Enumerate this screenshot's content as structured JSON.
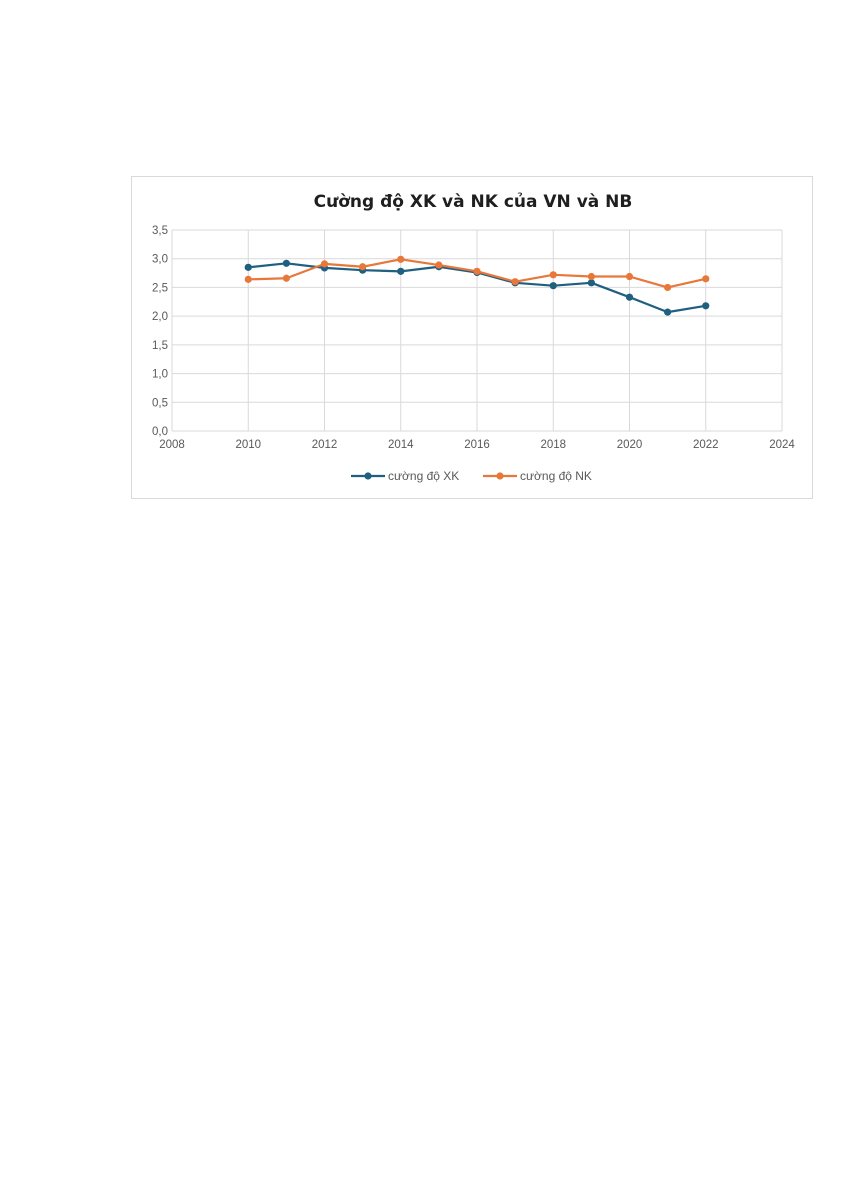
{
  "chart_data": {
    "type": "scatter",
    "title": "Cường độ XK và NK của VN và NB",
    "xlabel": "",
    "ylabel": "",
    "xlim": [
      2008,
      2024
    ],
    "ylim": [
      0,
      3.5
    ],
    "xticks": [
      2008,
      2010,
      2012,
      2014,
      2016,
      2018,
      2020,
      2022,
      2024
    ],
    "yticks": [
      0,
      0.5,
      1.0,
      1.5,
      2.0,
      2.5,
      3.0,
      3.5
    ],
    "xtick_labels": [
      "2008",
      "2010",
      "2012",
      "2014",
      "2016",
      "2018",
      "2020",
      "2022",
      "2024"
    ],
    "ytick_labels": [
      "0,0",
      "0,5",
      "1,0",
      "1,5",
      "2,0",
      "2,5",
      "3,0",
      "3,5"
    ],
    "grid": "horizontal",
    "legend_position": "bottom",
    "x": [
      2010,
      2011,
      2012,
      2013,
      2014,
      2015,
      2016,
      2017,
      2018,
      2019,
      2020,
      2021,
      2022
    ],
    "series": [
      {
        "name": "cường độ XK",
        "color": "#1f5f7f",
        "values": [
          2.85,
          2.92,
          2.84,
          2.8,
          2.78,
          2.86,
          2.76,
          2.58,
          2.53,
          2.58,
          2.33,
          2.07,
          2.18
        ]
      },
      {
        "name": "cường độ NK",
        "color": "#e8773a",
        "values": [
          2.64,
          2.66,
          2.91,
          2.86,
          2.99,
          2.89,
          2.78,
          2.6,
          2.72,
          2.69,
          2.69,
          2.5,
          2.65
        ]
      }
    ]
  }
}
